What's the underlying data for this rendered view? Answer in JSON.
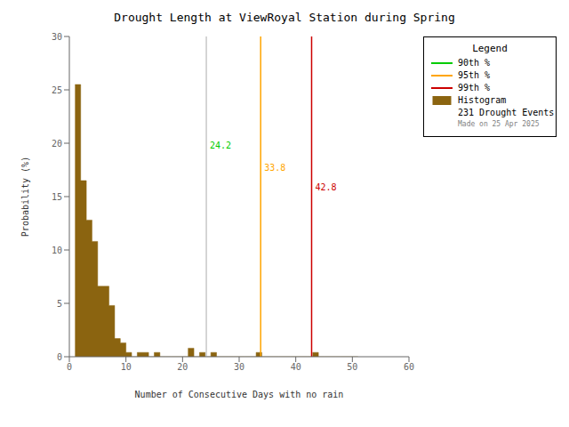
{
  "chart_data": {
    "type": "histogram",
    "title": "Drought Length at ViewRoyal Station during Spring",
    "x_label": "Number of Consecutive Days with no rain",
    "y_label": "Probability (%)",
    "xlim": [
      0,
      60
    ],
    "ylim": [
      0,
      30
    ],
    "xticks": [
      0,
      10,
      20,
      30,
      40,
      50,
      60
    ],
    "yticks": [
      0,
      5,
      10,
      15,
      20,
      25,
      30
    ],
    "grid": false,
    "legend": "right",
    "legend_title": "Legend",
    "bins": [
      1,
      2,
      3,
      4,
      5,
      6,
      7,
      8,
      9,
      10,
      11,
      12,
      13,
      14,
      15,
      16,
      17,
      18,
      19,
      20,
      21,
      22,
      23,
      24,
      25,
      26,
      27,
      28,
      29,
      30,
      31,
      32,
      33,
      34,
      35,
      36,
      37,
      38,
      39,
      40,
      41,
      42,
      43,
      44,
      45,
      46,
      47,
      48,
      49,
      50,
      51
    ],
    "series": [
      {
        "name": "Histogram",
        "color": "#8B6410",
        "values": [
          25.5,
          16.5,
          12.8,
          10.8,
          6.6,
          6.6,
          4.8,
          1.7,
          1.3,
          0.4,
          0.0,
          0.4,
          0.4,
          0.0,
          0.4,
          0.0,
          0.0,
          0.0,
          0.0,
          0.0,
          0.8,
          0.0,
          0.4,
          0.0,
          0.4,
          0.0,
          0.0,
          0.0,
          0.0,
          0.0,
          0.0,
          0.0,
          0.4,
          0.0,
          0.0,
          0.0,
          0.0,
          0.0,
          0.0,
          0.0,
          0.0,
          0.0,
          0.4,
          0.0,
          0.0,
          0.0,
          0.0,
          0.0,
          0.0,
          0.0
        ]
      }
    ],
    "lines": [
      {
        "name": "90th %",
        "x": 24.2,
        "color": "#c8c8c8",
        "legend_color": "#00cc00",
        "label_color": "#00cc00"
      },
      {
        "name": "95th %",
        "x": 33.8,
        "color": "#ffa500",
        "legend_color": "#ffa500",
        "label_color": "#ffa500"
      },
      {
        "name": "99th %",
        "x": 42.8,
        "color": "#cc0000",
        "legend_color": "#cc0000",
        "label_color": "#cc0000"
      }
    ],
    "notes": [
      "231 Drought Events",
      "Made on 25 Apr 2025"
    ]
  }
}
